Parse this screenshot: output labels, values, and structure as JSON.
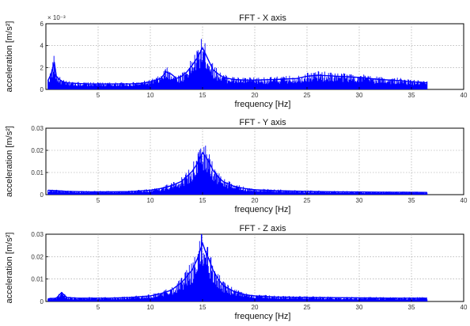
{
  "chart_data": [
    {
      "type": "line",
      "title": "FFT - X axis",
      "xlabel": "frequency [Hz]",
      "ylabel": "acceleration [m/s²]",
      "y_exponent_label": "× 10⁻³",
      "xlim": [
        0,
        40
      ],
      "ylim": [
        0,
        6
      ],
      "xticks": [
        "5",
        "10",
        "15",
        "20",
        "25",
        "30",
        "35",
        "40"
      ],
      "yticks": [
        "0",
        "2",
        "4",
        "6"
      ],
      "grid": true,
      "series_color": "#0000ff",
      "series": [
        {
          "x": [
            0.2,
            0.5,
            0.8,
            1.0,
            1.3,
            1.6,
            2,
            3,
            4,
            5,
            6,
            7,
            8,
            9,
            10,
            11,
            11.5,
            12,
            12.5,
            13,
            13.5,
            14,
            14.5,
            15,
            15.3,
            15.6,
            16,
            16.5,
            17,
            18,
            19,
            20,
            22,
            24,
            25,
            26,
            28,
            30,
            32,
            34,
            35,
            36.5
          ],
          "values": [
            0.8,
            1.4,
            2.5,
            1.2,
            0.9,
            0.7,
            0.6,
            0.55,
            0.5,
            0.5,
            0.5,
            0.5,
            0.5,
            0.55,
            0.7,
            1.0,
            1.6,
            1.4,
            1.0,
            1.2,
            1.6,
            2.2,
            2.9,
            3.8,
            3.2,
            2.6,
            1.8,
            1.4,
            1.1,
            0.9,
            0.85,
            0.85,
            0.9,
            1.0,
            1.2,
            1.3,
            1.2,
            1.1,
            0.9,
            0.8,
            0.7,
            0.6
          ]
        }
      ]
    },
    {
      "type": "line",
      "title": "FFT - Y axis",
      "xlabel": "frequency [Hz]",
      "ylabel": "acceleration [m/s²]",
      "xlim": [
        0,
        40
      ],
      "ylim": [
        0,
        0.03
      ],
      "xticks": [
        "5",
        "10",
        "15",
        "20",
        "25",
        "30",
        "35",
        "40"
      ],
      "yticks": [
        "0",
        "0.01",
        "0.02",
        "0.03"
      ],
      "grid": true,
      "series_color": "#0000ff",
      "series": [
        {
          "x": [
            0.2,
            1,
            2,
            4,
            6,
            8,
            10,
            11,
            12,
            13,
            14,
            14.5,
            15,
            15.3,
            15.6,
            16,
            16.5,
            17,
            18,
            19,
            20,
            22,
            25,
            28,
            30,
            33,
            36.5
          ],
          "values": [
            0.002,
            0.0018,
            0.0015,
            0.0013,
            0.0013,
            0.0014,
            0.002,
            0.0028,
            0.004,
            0.006,
            0.0105,
            0.014,
            0.019,
            0.017,
            0.015,
            0.011,
            0.008,
            0.0058,
            0.0038,
            0.0028,
            0.0022,
            0.0018,
            0.0015,
            0.0013,
            0.0012,
            0.0011,
            0.001
          ]
        }
      ]
    },
    {
      "type": "line",
      "title": "FFT - Z axis",
      "xlabel": "frequency [Hz]",
      "ylabel": "acceleration [m/s²]",
      "xlim": [
        0,
        40
      ],
      "ylim": [
        0,
        0.03
      ],
      "xticks": [
        "5",
        "10",
        "15",
        "20",
        "25",
        "30",
        "35",
        "40"
      ],
      "yticks": [
        "0",
        "0.01",
        "0.02",
        "0.03"
      ],
      "grid": true,
      "series_color": "#0000ff",
      "series": [
        {
          "x": [
            0.2,
            1,
            1.5,
            2,
            3,
            4,
            6,
            8,
            10,
            11,
            12,
            13,
            14,
            14.5,
            15,
            15.3,
            15.6,
            16,
            16.5,
            17,
            18,
            19,
            20,
            22,
            25,
            28,
            30,
            33,
            36.5
          ],
          "values": [
            0.0012,
            0.0015,
            0.004,
            0.0018,
            0.0015,
            0.0015,
            0.0015,
            0.0018,
            0.0025,
            0.0035,
            0.005,
            0.0085,
            0.014,
            0.019,
            0.026,
            0.022,
            0.019,
            0.014,
            0.01,
            0.007,
            0.0045,
            0.003,
            0.0025,
            0.002,
            0.0018,
            0.0017,
            0.0016,
            0.0015,
            0.0015
          ]
        }
      ]
    }
  ]
}
